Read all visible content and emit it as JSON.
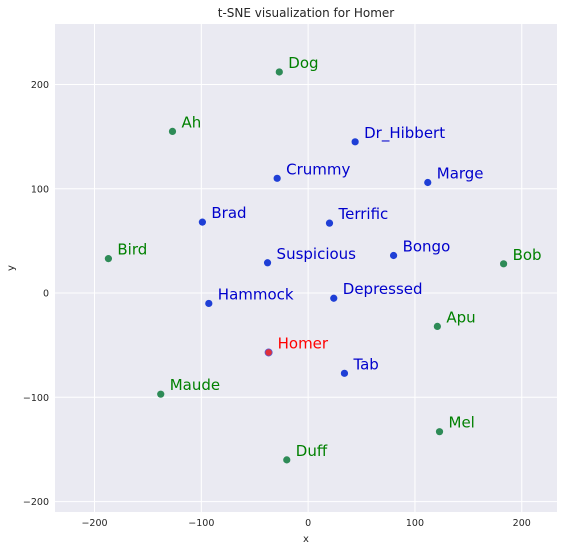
{
  "chart_data": {
    "type": "scatter",
    "title": "t-SNE visualization for Homer",
    "xlabel": "x",
    "ylabel": "y",
    "xlim": [
      -237,
      233
    ],
    "ylim": [
      -210,
      258
    ],
    "xticks": [
      -200,
      -100,
      0,
      100,
      200
    ],
    "yticks": [
      -200,
      -100,
      0,
      100,
      200
    ],
    "xtick_labels": [
      "−200",
      "−100",
      "0",
      "100",
      "200"
    ],
    "ytick_labels": [
      "−200",
      "−100",
      "0",
      "100",
      "200"
    ],
    "grid": true,
    "colors": {
      "blue": "#1f3fd6",
      "green": "#2e8b57",
      "red": "#e0303a",
      "blue_text": "#0000cc",
      "green_text": "#008000",
      "red_text": "#ff0000",
      "background": "#eaeaf2",
      "grid": "#ffffff"
    },
    "points": [
      {
        "label": "Dog",
        "x": -27,
        "y": 212,
        "color": "green"
      },
      {
        "label": "Ah",
        "x": -127,
        "y": 155,
        "color": "green"
      },
      {
        "label": "Dr_Hibbert",
        "x": 44,
        "y": 145,
        "color": "blue"
      },
      {
        "label": "Crummy",
        "x": -29,
        "y": 110,
        "color": "blue"
      },
      {
        "label": "Marge",
        "x": 112,
        "y": 106,
        "color": "blue"
      },
      {
        "label": "Brad",
        "x": -99,
        "y": 68,
        "color": "blue"
      },
      {
        "label": "Terrific",
        "x": 20,
        "y": 67,
        "color": "blue"
      },
      {
        "label": "Bird",
        "x": -187,
        "y": 33,
        "color": "green"
      },
      {
        "label": "Suspicious",
        "x": -38,
        "y": 29,
        "color": "blue"
      },
      {
        "label": "Bongo",
        "x": 80,
        "y": 36,
        "color": "blue"
      },
      {
        "label": "Bob",
        "x": 183,
        "y": 28,
        "color": "green"
      },
      {
        "label": "Hammock",
        "x": -93,
        "y": -10,
        "color": "blue"
      },
      {
        "label": "Depressed",
        "x": 24,
        "y": -5,
        "color": "blue"
      },
      {
        "label": "Apu",
        "x": 121,
        "y": -32,
        "color": "green"
      },
      {
        "label": "Homer",
        "x": -37,
        "y": -57,
        "color": "red"
      },
      {
        "label": "Tab",
        "x": 34,
        "y": -77,
        "color": "blue"
      },
      {
        "label": "Maude",
        "x": -138,
        "y": -97,
        "color": "green"
      },
      {
        "label": "Mel",
        "x": 123,
        "y": -133,
        "color": "green"
      },
      {
        "label": "Duff",
        "x": -20,
        "y": -160,
        "color": "green"
      }
    ]
  }
}
